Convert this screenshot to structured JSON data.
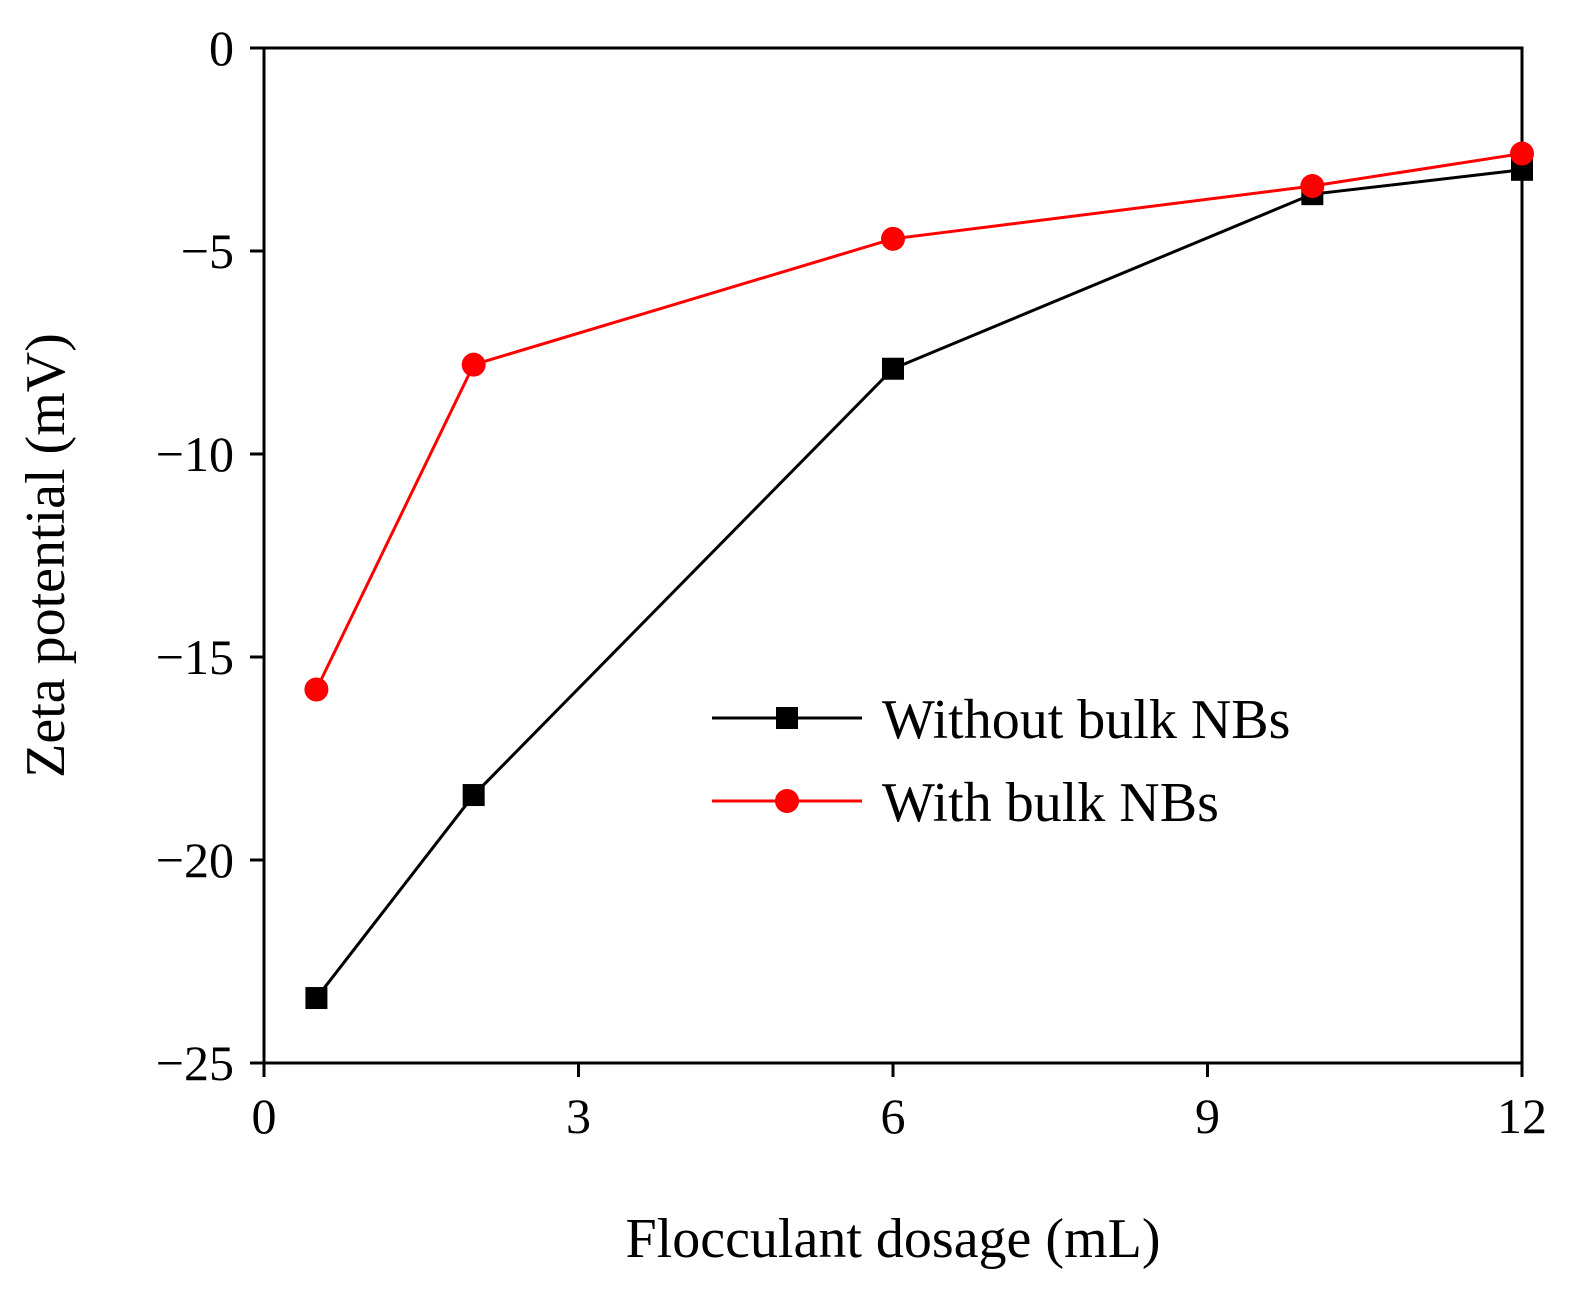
{
  "chart_data": {
    "type": "line",
    "title": "",
    "xlabel": "Flocculant dosage (mL)",
    "ylabel": "Zeta potential (mV)",
    "xlim": [
      0,
      12
    ],
    "ylim": [
      -25,
      0
    ],
    "xticks": [
      0,
      3,
      6,
      9,
      12
    ],
    "xtick_labels": [
      "0",
      "3",
      "6",
      "9",
      "12"
    ],
    "yticks": [
      0,
      -5,
      -10,
      -15,
      -20,
      -25
    ],
    "ytick_labels": [
      "0",
      "−5",
      "−10",
      "−15",
      "−20",
      "−25"
    ],
    "grid": false,
    "legend_position": "center-right",
    "series": [
      {
        "name": "Without bulk NBs",
        "color": "#000000",
        "marker": "square",
        "x": [
          0.5,
          2,
          6,
          10,
          12
        ],
        "y": [
          -23.4,
          -18.4,
          -7.9,
          -3.6,
          -3.0
        ]
      },
      {
        "name": "With bulk NBs",
        "color": "#ff0000",
        "marker": "circle",
        "x": [
          0.5,
          2,
          6,
          10,
          12
        ],
        "y": [
          -15.8,
          -7.8,
          -4.7,
          -3.4,
          -2.6
        ]
      }
    ]
  }
}
